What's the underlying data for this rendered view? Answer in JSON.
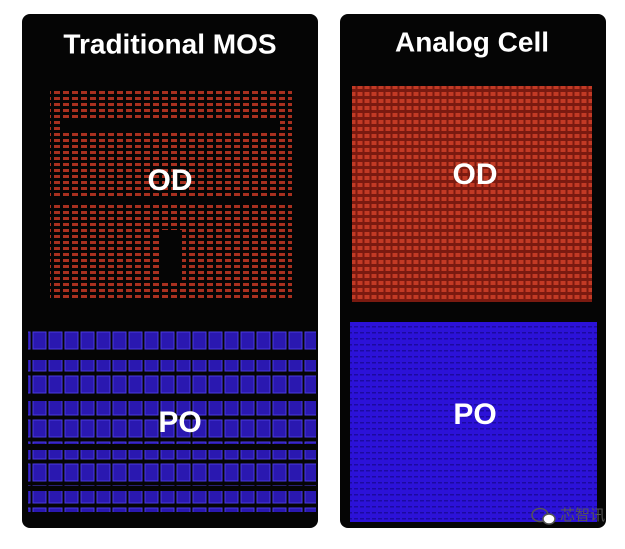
{
  "panels": [
    {
      "title": "Traditional MOS",
      "regions": [
        {
          "label": "OD"
        },
        {
          "label": "PO"
        }
      ]
    },
    {
      "title": "Analog Cell",
      "regions": [
        {
          "label": "OD"
        },
        {
          "label": "PO"
        }
      ]
    }
  ],
  "watermark": "芯智讯"
}
